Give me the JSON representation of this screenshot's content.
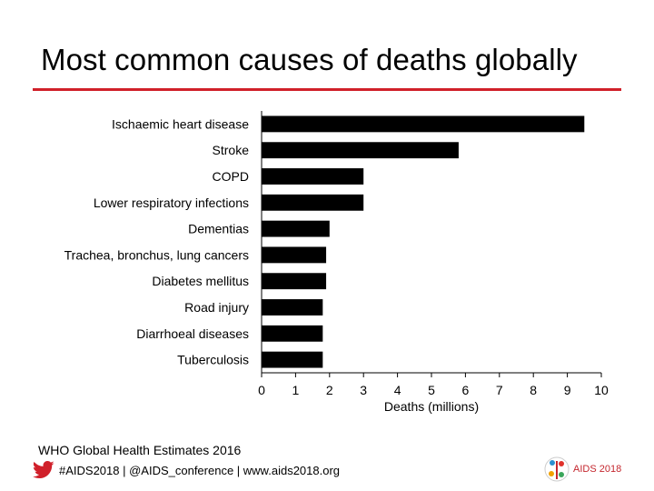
{
  "slide": {
    "title": "Most common causes of deaths globally",
    "source": "WHO Global Health Estimates 2016",
    "footer_text": "#AIDS2018 | @AIDS_conference | www.aids2018.org",
    "logo_text": "AIDS 2018",
    "accent_color": "#d0202a",
    "twitter_color": "#d0202a"
  },
  "chart_data": {
    "type": "bar",
    "orientation": "horizontal",
    "categories": [
      "Ischaemic heart disease",
      "Stroke",
      "COPD",
      "Lower respiratory infections",
      "Dementias",
      "Trachea, bronchus, lung cancers",
      "Diabetes mellitus",
      "Road injury",
      "Diarrhoeal diseases",
      "Tuberculosis"
    ],
    "values": [
      9.5,
      5.8,
      3.0,
      3.0,
      2.0,
      1.9,
      1.9,
      1.8,
      1.8,
      1.8
    ],
    "xlabel": "Deaths (millions)",
    "ylabel": "",
    "xlim": [
      0,
      10
    ],
    "xticks": [
      "0",
      "1",
      "2",
      "3",
      "4",
      "5",
      "6",
      "7",
      "8",
      "9",
      "10"
    ],
    "bar_color": "#000000",
    "grid": false,
    "legend": "none"
  }
}
